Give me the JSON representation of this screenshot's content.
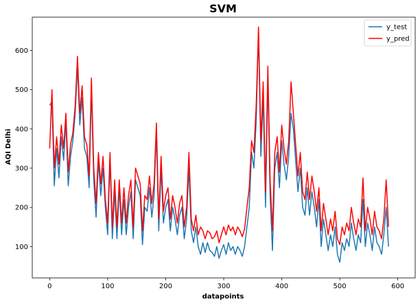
{
  "chart_data": {
    "type": "line",
    "title": "SVM",
    "xlabel": "datapoints",
    "ylabel": "AQI Delhi",
    "xlim": [
      -30,
      630
    ],
    "ylim": [
      20,
      685
    ],
    "xticks": [
      0,
      100,
      200,
      300,
      400,
      500,
      600
    ],
    "yticks": [
      100,
      200,
      300,
      400,
      500,
      600
    ],
    "grid": false,
    "legend_position": "top-right",
    "series": [
      {
        "name": "y_test",
        "color": "#1f77b4",
        "points": [
          [
            0,
            460
          ],
          [
            4,
            470
          ],
          [
            8,
            255
          ],
          [
            12,
            350
          ],
          [
            16,
            275
          ],
          [
            20,
            380
          ],
          [
            24,
            320
          ],
          [
            28,
            420
          ],
          [
            32,
            255
          ],
          [
            36,
            330
          ],
          [
            40,
            370
          ],
          [
            44,
            440
          ],
          [
            48,
            560
          ],
          [
            52,
            410
          ],
          [
            56,
            480
          ],
          [
            60,
            350
          ],
          [
            64,
            330
          ],
          [
            68,
            250
          ],
          [
            72,
            500
          ],
          [
            76,
            270
          ],
          [
            80,
            175
          ],
          [
            84,
            320
          ],
          [
            88,
            230
          ],
          [
            92,
            300
          ],
          [
            96,
            200
          ],
          [
            100,
            130
          ],
          [
            104,
            320
          ],
          [
            108,
            120
          ],
          [
            112,
            240
          ],
          [
            116,
            120
          ],
          [
            120,
            250
          ],
          [
            124,
            130
          ],
          [
            128,
            220
          ],
          [
            132,
            130
          ],
          [
            136,
            200
          ],
          [
            140,
            240
          ],
          [
            144,
            120
          ],
          [
            148,
            270
          ],
          [
            152,
            250
          ],
          [
            156,
            230
          ],
          [
            160,
            105
          ],
          [
            164,
            200
          ],
          [
            168,
            190
          ],
          [
            172,
            250
          ],
          [
            176,
            175
          ],
          [
            180,
            230
          ],
          [
            184,
            390
          ],
          [
            188,
            140
          ],
          [
            192,
            300
          ],
          [
            196,
            160
          ],
          [
            200,
            200
          ],
          [
            204,
            220
          ],
          [
            208,
            140
          ],
          [
            212,
            200
          ],
          [
            216,
            170
          ],
          [
            220,
            130
          ],
          [
            224,
            180
          ],
          [
            228,
            200
          ],
          [
            232,
            120
          ],
          [
            236,
            170
          ],
          [
            240,
            300
          ],
          [
            244,
            140
          ],
          [
            248,
            110
          ],
          [
            252,
            150
          ],
          [
            256,
            100
          ],
          [
            260,
            80
          ],
          [
            264,
            110
          ],
          [
            268,
            85
          ],
          [
            272,
            110
          ],
          [
            276,
            90
          ],
          [
            280,
            85
          ],
          [
            284,
            75
          ],
          [
            288,
            100
          ],
          [
            292,
            70
          ],
          [
            296,
            90
          ],
          [
            300,
            105
          ],
          [
            304,
            80
          ],
          [
            308,
            110
          ],
          [
            312,
            90
          ],
          [
            316,
            100
          ],
          [
            320,
            80
          ],
          [
            324,
            100
          ],
          [
            328,
            90
          ],
          [
            332,
            75
          ],
          [
            336,
            100
          ],
          [
            340,
            150
          ],
          [
            344,
            200
          ],
          [
            348,
            340
          ],
          [
            352,
            300
          ],
          [
            356,
            420
          ],
          [
            360,
            650
          ],
          [
            364,
            330
          ],
          [
            368,
            480
          ],
          [
            372,
            200
          ],
          [
            376,
            530
          ],
          [
            380,
            230
          ],
          [
            384,
            90
          ],
          [
            388,
            300
          ],
          [
            392,
            340
          ],
          [
            396,
            250
          ],
          [
            400,
            370
          ],
          [
            404,
            310
          ],
          [
            408,
            270
          ],
          [
            412,
            330
          ],
          [
            416,
            440
          ],
          [
            420,
            400
          ],
          [
            424,
            320
          ],
          [
            428,
            240
          ],
          [
            432,
            300
          ],
          [
            436,
            200
          ],
          [
            440,
            180
          ],
          [
            444,
            250
          ],
          [
            448,
            180
          ],
          [
            452,
            240
          ],
          [
            456,
            200
          ],
          [
            460,
            150
          ],
          [
            464,
            220
          ],
          [
            468,
            100
          ],
          [
            472,
            170
          ],
          [
            476,
            130
          ],
          [
            480,
            90
          ],
          [
            484,
            130
          ],
          [
            488,
            100
          ],
          [
            492,
            150
          ],
          [
            496,
            80
          ],
          [
            500,
            60
          ],
          [
            504,
            110
          ],
          [
            508,
            90
          ],
          [
            512,
            120
          ],
          [
            516,
            100
          ],
          [
            520,
            160
          ],
          [
            524,
            120
          ],
          [
            528,
            90
          ],
          [
            532,
            130
          ],
          [
            536,
            110
          ],
          [
            540,
            220
          ],
          [
            544,
            100
          ],
          [
            548,
            160
          ],
          [
            552,
            130
          ],
          [
            556,
            90
          ],
          [
            560,
            150
          ],
          [
            564,
            110
          ],
          [
            568,
            100
          ],
          [
            572,
            80
          ],
          [
            576,
            130
          ],
          [
            580,
            200
          ],
          [
            584,
            100
          ]
        ]
      },
      {
        "name": "y_pred",
        "color": "#ff0000",
        "points": [
          [
            0,
            350
          ],
          [
            4,
            500
          ],
          [
            8,
            300
          ],
          [
            12,
            380
          ],
          [
            16,
            310
          ],
          [
            20,
            410
          ],
          [
            24,
            350
          ],
          [
            28,
            440
          ],
          [
            32,
            290
          ],
          [
            36,
            360
          ],
          [
            40,
            390
          ],
          [
            44,
            460
          ],
          [
            48,
            585
          ],
          [
            52,
            440
          ],
          [
            56,
            510
          ],
          [
            60,
            380
          ],
          [
            64,
            360
          ],
          [
            68,
            280
          ],
          [
            72,
            530
          ],
          [
            76,
            300
          ],
          [
            80,
            210
          ],
          [
            84,
            340
          ],
          [
            88,
            260
          ],
          [
            92,
            330
          ],
          [
            96,
            220
          ],
          [
            100,
            160
          ],
          [
            104,
            340
          ],
          [
            108,
            150
          ],
          [
            112,
            270
          ],
          [
            116,
            150
          ],
          [
            120,
            270
          ],
          [
            124,
            160
          ],
          [
            128,
            250
          ],
          [
            132,
            160
          ],
          [
            136,
            230
          ],
          [
            140,
            270
          ],
          [
            144,
            150
          ],
          [
            148,
            300
          ],
          [
            152,
            280
          ],
          [
            156,
            260
          ],
          [
            160,
            140
          ],
          [
            164,
            230
          ],
          [
            168,
            220
          ],
          [
            172,
            280
          ],
          [
            176,
            210
          ],
          [
            180,
            260
          ],
          [
            184,
            415
          ],
          [
            188,
            170
          ],
          [
            192,
            330
          ],
          [
            196,
            190
          ],
          [
            200,
            230
          ],
          [
            204,
            250
          ],
          [
            208,
            170
          ],
          [
            212,
            230
          ],
          [
            216,
            200
          ],
          [
            220,
            160
          ],
          [
            224,
            210
          ],
          [
            228,
            230
          ],
          [
            232,
            150
          ],
          [
            236,
            200
          ],
          [
            240,
            340
          ],
          [
            244,
            170
          ],
          [
            248,
            140
          ],
          [
            252,
            180
          ],
          [
            256,
            130
          ],
          [
            260,
            150
          ],
          [
            264,
            140
          ],
          [
            268,
            120
          ],
          [
            272,
            140
          ],
          [
            276,
            135
          ],
          [
            280,
            120
          ],
          [
            284,
            125
          ],
          [
            288,
            140
          ],
          [
            292,
            110
          ],
          [
            296,
            130
          ],
          [
            300,
            150
          ],
          [
            304,
            130
          ],
          [
            308,
            155
          ],
          [
            312,
            140
          ],
          [
            316,
            150
          ],
          [
            320,
            130
          ],
          [
            324,
            150
          ],
          [
            328,
            140
          ],
          [
            332,
            125
          ],
          [
            336,
            145
          ],
          [
            340,
            200
          ],
          [
            344,
            250
          ],
          [
            348,
            370
          ],
          [
            352,
            340
          ],
          [
            356,
            460
          ],
          [
            360,
            660
          ],
          [
            364,
            370
          ],
          [
            368,
            520
          ],
          [
            372,
            240
          ],
          [
            376,
            560
          ],
          [
            380,
            270
          ],
          [
            384,
            140
          ],
          [
            388,
            340
          ],
          [
            392,
            380
          ],
          [
            396,
            290
          ],
          [
            400,
            410
          ],
          [
            404,
            350
          ],
          [
            408,
            310
          ],
          [
            412,
            370
          ],
          [
            416,
            520
          ],
          [
            420,
            440
          ],
          [
            424,
            360
          ],
          [
            428,
            280
          ],
          [
            432,
            340
          ],
          [
            436,
            240
          ],
          [
            440,
            220
          ],
          [
            444,
            290
          ],
          [
            448,
            220
          ],
          [
            452,
            280
          ],
          [
            456,
            240
          ],
          [
            460,
            190
          ],
          [
            464,
            250
          ],
          [
            468,
            140
          ],
          [
            472,
            210
          ],
          [
            476,
            170
          ],
          [
            480,
            130
          ],
          [
            484,
            170
          ],
          [
            488,
            140
          ],
          [
            492,
            190
          ],
          [
            496,
            120
          ],
          [
            500,
            105
          ],
          [
            504,
            150
          ],
          [
            508,
            130
          ],
          [
            512,
            160
          ],
          [
            516,
            140
          ],
          [
            520,
            200
          ],
          [
            524,
            160
          ],
          [
            528,
            130
          ],
          [
            532,
            170
          ],
          [
            536,
            150
          ],
          [
            540,
            275
          ],
          [
            544,
            140
          ],
          [
            548,
            200
          ],
          [
            552,
            170
          ],
          [
            556,
            130
          ],
          [
            560,
            190
          ],
          [
            564,
            150
          ],
          [
            568,
            140
          ],
          [
            572,
            120
          ],
          [
            576,
            170
          ],
          [
            580,
            270
          ],
          [
            584,
            150
          ]
        ]
      }
    ]
  }
}
